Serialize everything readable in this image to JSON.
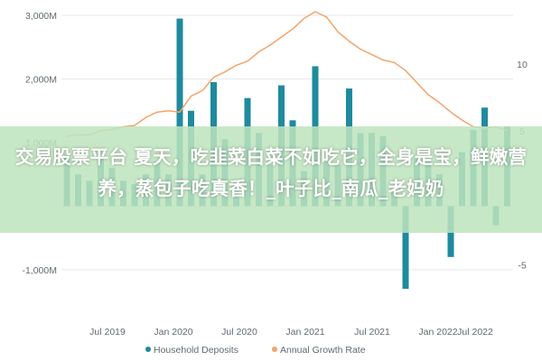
{
  "chart_data": {
    "type": "bar+line",
    "x_ticks": [
      "Jul 2019",
      "Jan 2020",
      "Jul 2020",
      "Jan 2021",
      "Jul 2021",
      "Jan 2022",
      "Jul 2022"
    ],
    "y_left": {
      "ticks": [
        "3,000M",
        "2,000M",
        "1,000M",
        "-1,000M"
      ],
      "tick_values": [
        3000,
        2000,
        1000,
        -1000
      ],
      "ylim": [
        -1300,
        3100
      ]
    },
    "y_right": {
      "ticks": [
        "10",
        "5",
        "-5"
      ],
      "tick_values": [
        10,
        5,
        -5
      ],
      "ylim": [
        -6.8,
        14.1
      ]
    },
    "grid": "horizontal",
    "legend_position": "bottom",
    "series": [
      {
        "name": "Household Deposits",
        "type": "bar",
        "axis": "left",
        "color": "#1f8a9e",
        "values": [
          800,
          500,
          400,
          750,
          600,
          400,
          350,
          500,
          700,
          500,
          2950,
          1500,
          500,
          1950,
          1050,
          400,
          1700,
          1150,
          650,
          1900,
          1350,
          550,
          2200,
          700,
          650,
          1850,
          1150,
          1150,
          1100,
          250,
          -1300,
          750,
          700,
          500,
          -800,
          850,
          1200,
          1550,
          -300,
          1250
        ]
      },
      {
        "name": "Annual Growth Rate",
        "type": "line",
        "axis": "right",
        "color": "#f5a36a",
        "values": [
          4.6,
          4.7,
          4.7,
          5.0,
          5.1,
          5.3,
          5.4,
          6.0,
          6.4,
          6.5,
          6.4,
          7.6,
          8.0,
          9.0,
          9.4,
          9.9,
          10.2,
          10.9,
          11.4,
          12.0,
          12.6,
          13.4,
          13.9,
          13.5,
          12.4,
          11.7,
          11.1,
          10.7,
          10.3,
          10.1,
          9.5,
          8.6,
          7.7,
          7.1,
          6.4,
          5.8,
          5.3,
          5.2,
          5.3,
          5.0
        ]
      }
    ]
  },
  "legend": [
    {
      "label": "Household Deposits",
      "color": "#1f8a9e"
    },
    {
      "label": "Annual Growth Rate",
      "color": "#f5a36a"
    }
  ],
  "banner": {
    "text": "交易股票平台 夏天，吃韭菜白菜不如吃它，全身是宝，鲜嫩营养，蒸包子吃真香！_叶子比_南瓜_老妈奶"
  }
}
